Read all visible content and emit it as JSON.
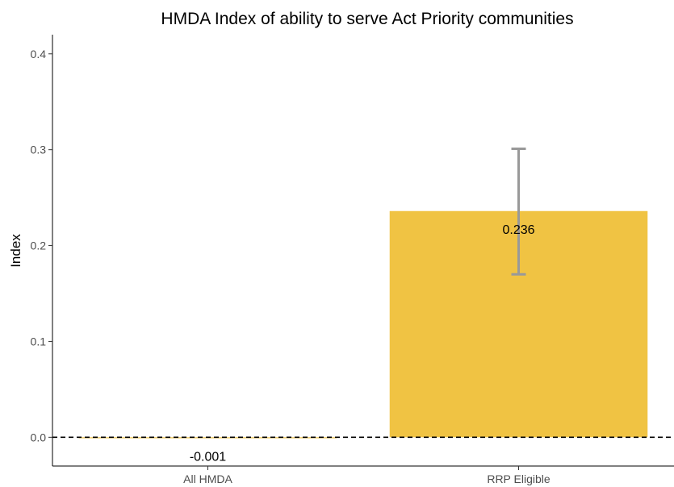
{
  "chart_data": {
    "type": "bar",
    "title": "HMDA Index of ability to serve Act Priority communities",
    "xlabel": "",
    "ylabel": "Index",
    "categories": [
      "All HMDA",
      "RRP Eligible"
    ],
    "values": [
      -0.001,
      0.236
    ],
    "value_labels": [
      "-0.001",
      "0.236"
    ],
    "error_bars": [
      null,
      {
        "low": 0.17,
        "high": 0.301
      }
    ],
    "ylim": [
      -0.03,
      0.42
    ],
    "yticks": [
      0.0,
      0.1,
      0.2,
      0.3,
      0.4
    ],
    "ytick_labels": [
      "0.0",
      "0.1",
      "0.2",
      "0.3",
      "0.4"
    ],
    "reference_line": {
      "y": 0,
      "style": "dashed"
    },
    "grid": false,
    "legend": "none",
    "colors": {
      "bar": "#f0c343",
      "error_bar": "#999999",
      "axis": "#000000"
    }
  }
}
